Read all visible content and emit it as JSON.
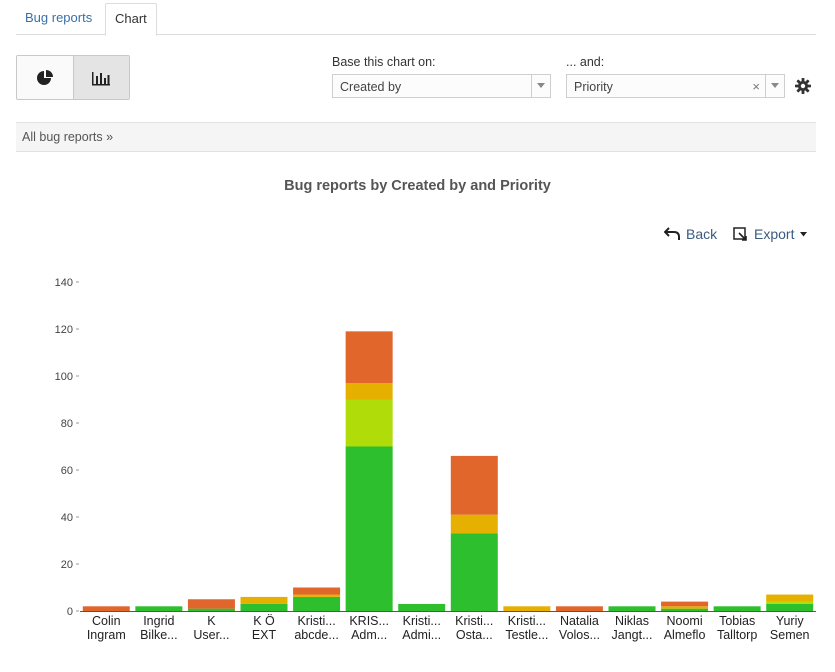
{
  "tabs": [
    {
      "label": "Bug reports"
    },
    {
      "label": "Chart"
    }
  ],
  "toggle": {
    "pie_icon": "pie-chart-icon",
    "bar_icon": "bar-chart-icon"
  },
  "controls": {
    "base_label": "Base this chart on:",
    "base_value": "Created by",
    "and_label": "... and:",
    "and_value": "Priority",
    "clear": "×"
  },
  "breadcrumb": {
    "text": "All bug reports",
    "sep": "»"
  },
  "actions": {
    "back": "Back",
    "export": "Export"
  },
  "colors": {
    "green": "#2dbf2d",
    "lime": "#b0dc0a",
    "yellow": "#e6b000",
    "orange": "#e0662c"
  },
  "chart_data": {
    "type": "bar",
    "stacked": true,
    "title": "Bug reports by Created by and Priority",
    "ylim": [
      0,
      140
    ],
    "yticks": [
      0,
      20,
      40,
      60,
      80,
      100,
      120,
      140
    ],
    "categories": [
      [
        "Colin",
        "Ingram"
      ],
      [
        "Ingrid",
        "Bilke..."
      ],
      [
        "K",
        "User..."
      ],
      [
        "K Ö",
        "EXT"
      ],
      [
        "Kristi...",
        "abcde..."
      ],
      [
        "KRIS...",
        "Adm..."
      ],
      [
        "Kristi...",
        "Admi..."
      ],
      [
        "Kristi...",
        "Osta..."
      ],
      [
        "Kristi...",
        "Testle..."
      ],
      [
        "Natalia",
        "Volos..."
      ],
      [
        "Niklas",
        "Jangt..."
      ],
      [
        "Noomi",
        "Almeflo"
      ],
      [
        "Tobias",
        "Talltorp"
      ],
      [
        "Yuriy",
        "Semen"
      ]
    ],
    "series": [
      {
        "color": "#2dbf2d",
        "values": [
          0,
          2,
          1,
          3,
          6,
          70,
          3,
          33,
          0,
          0,
          2,
          1,
          2,
          3
        ]
      },
      {
        "color": "#b0dc0a",
        "values": [
          0,
          0,
          0,
          0,
          0,
          20,
          0,
          0,
          0,
          0,
          0,
          0,
          0,
          1
        ]
      },
      {
        "color": "#e6b000",
        "values": [
          0,
          0,
          0,
          3,
          1,
          7,
          0,
          8,
          2,
          0,
          0,
          1,
          0,
          3
        ]
      },
      {
        "color": "#e0662c",
        "values": [
          2,
          0,
          4,
          0,
          3,
          22,
          0,
          25,
          0,
          2,
          0,
          2,
          0,
          0
        ]
      }
    ]
  }
}
